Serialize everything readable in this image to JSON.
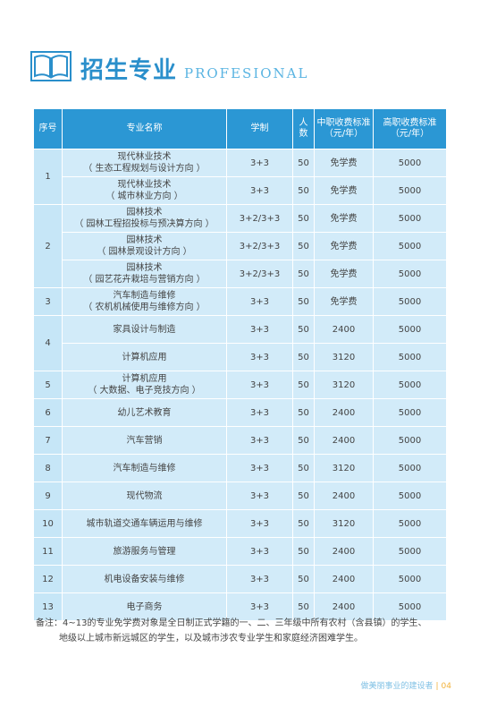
{
  "header": {
    "title": "招生专业",
    "subtitle": "PROFESIONAL"
  },
  "table": {
    "headers": {
      "seq": "序号",
      "major": "专业名称",
      "system": "学制",
      "count": "人数",
      "mid_fee": "中职收费标准（元/年）",
      "high_fee": "高职收费标准（元/年）"
    },
    "groups": [
      {
        "seq": "1",
        "rows": [
          {
            "major": [
              "现代林业技术",
              "（ 生态工程规划与设计方向 ）"
            ],
            "system": "3+3",
            "count": "50",
            "mid_fee": "免学费",
            "high_fee": "5000"
          },
          {
            "major": [
              "现代林业技术",
              "（ 城市林业方向 ）"
            ],
            "system": "3+3",
            "count": "50",
            "mid_fee": "免学费",
            "high_fee": "5000"
          }
        ]
      },
      {
        "seq": "2",
        "rows": [
          {
            "major": [
              "园林技术",
              "（ 园林工程招投标与预决算方向 ）"
            ],
            "system": "3+2/3+3",
            "count": "50",
            "mid_fee": "免学费",
            "high_fee": "5000"
          },
          {
            "major": [
              "园林技术",
              "（ 园林景观设计方向 ）"
            ],
            "system": "3+2/3+3",
            "count": "50",
            "mid_fee": "免学费",
            "high_fee": "5000"
          },
          {
            "major": [
              "园林技术",
              "（ 园艺花卉栽培与营销方向 ）"
            ],
            "system": "3+2/3+3",
            "count": "50",
            "mid_fee": "免学费",
            "high_fee": "5000"
          }
        ]
      },
      {
        "seq": "3",
        "rows": [
          {
            "major": [
              "汽车制造与维修",
              "（ 农机机械使用与维修方向 ）"
            ],
            "system": "3+3",
            "count": "50",
            "mid_fee": "免学费",
            "high_fee": "5000"
          }
        ]
      },
      {
        "seq": "4",
        "rows": [
          {
            "major": [
              "家具设计与制造"
            ],
            "system": "3+3",
            "count": "50",
            "mid_fee": "2400",
            "high_fee": "5000"
          },
          {
            "major": [
              "计算机应用"
            ],
            "system": "3+3",
            "count": "50",
            "mid_fee": "3120",
            "high_fee": "5000"
          }
        ]
      },
      {
        "seq": "5",
        "rows": [
          {
            "major": [
              "计算机应用",
              "（ 大数据、电子竞技方向 ）"
            ],
            "system": "3+3",
            "count": "50",
            "mid_fee": "3120",
            "high_fee": "5000"
          }
        ]
      },
      {
        "seq": "6",
        "rows": [
          {
            "major": [
              "幼儿艺术教育"
            ],
            "system": "3+3",
            "count": "50",
            "mid_fee": "2400",
            "high_fee": "5000"
          }
        ]
      },
      {
        "seq": "7",
        "rows": [
          {
            "major": [
              "汽车营销"
            ],
            "system": "3+3",
            "count": "50",
            "mid_fee": "2400",
            "high_fee": "5000"
          }
        ]
      },
      {
        "seq": "8",
        "rows": [
          {
            "major": [
              "汽车制造与维修"
            ],
            "system": "3+3",
            "count": "50",
            "mid_fee": "3120",
            "high_fee": "5000"
          }
        ]
      },
      {
        "seq": "9",
        "rows": [
          {
            "major": [
              "现代物流"
            ],
            "system": "3+3",
            "count": "50",
            "mid_fee": "2400",
            "high_fee": "5000"
          }
        ]
      },
      {
        "seq": "10",
        "rows": [
          {
            "major": [
              "城市轨道交通车辆运用与维修"
            ],
            "system": "3+3",
            "count": "50",
            "mid_fee": "3120",
            "high_fee": "5000"
          }
        ]
      },
      {
        "seq": "11",
        "rows": [
          {
            "major": [
              "旅游服务与管理"
            ],
            "system": "3+3",
            "count": "50",
            "mid_fee": "2400",
            "high_fee": "5000"
          }
        ]
      },
      {
        "seq": "12",
        "rows": [
          {
            "major": [
              "机电设备安装与维修"
            ],
            "system": "3+3",
            "count": "50",
            "mid_fee": "2400",
            "high_fee": "5000"
          }
        ]
      },
      {
        "seq": "13",
        "rows": [
          {
            "major": [
              "电子商务"
            ],
            "system": "3+3",
            "count": "50",
            "mid_fee": "2400",
            "high_fee": "5000"
          }
        ]
      }
    ]
  },
  "note": {
    "line1": "备注：4~13的专业免学费对象是全日制正式学籍的一、二、三年级中所有农村（含县镇）的学生、",
    "line2": "地级以上城市新远城区的学生，以及城市涉农专业学生和家庭经济困难学生。"
  },
  "footer": {
    "text": "做美丽事业的建设者",
    "page": "04"
  },
  "colors": {
    "accent": "#2b97d4",
    "cell_bg": "#d2ebf9",
    "page_number": "#f2b23a"
  }
}
